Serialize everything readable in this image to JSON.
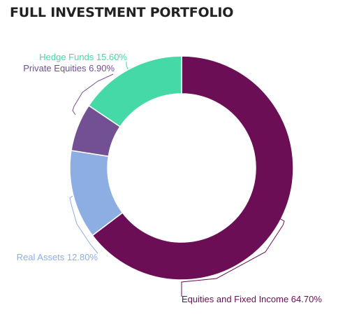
{
  "title": "FULL INVESTMENT PORTFOLIO",
  "chart_data": {
    "type": "pie",
    "variant": "donut",
    "title": "FULL INVESTMENT PORTFOLIO",
    "unit": "%",
    "start_angle_deg": 0,
    "direction": "clockwise",
    "slices": [
      {
        "label": "Equities and Fixed Income",
        "value": 64.7,
        "display": "Equities and Fixed Income 64.70%",
        "color": "#6b0e55"
      },
      {
        "label": "Real Assets",
        "value": 12.8,
        "display": "Real Assets 12.80%",
        "color": "#8caee3"
      },
      {
        "label": "Private Equities",
        "value": 6.9,
        "display": "Private Equities 6.90%",
        "color": "#735094"
      },
      {
        "label": "Hedge Funds",
        "value": 15.6,
        "display": "Hedge Funds 15.60%",
        "color": "#45d9a8"
      }
    ]
  }
}
